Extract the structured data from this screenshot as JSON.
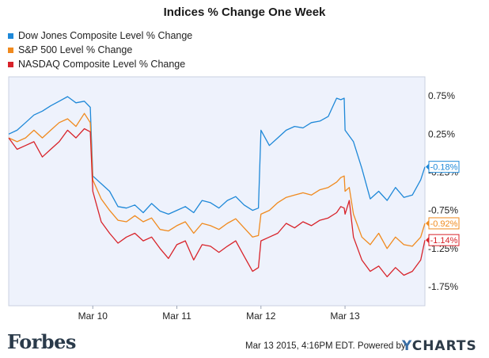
{
  "chart_data": {
    "type": "line",
    "title": "Indices % Change One Week",
    "xlabel": "",
    "ylabel": "",
    "categories": [
      "Mar 10",
      "Mar 11",
      "Mar 12",
      "Mar 13"
    ],
    "y_ticks": [
      "0.75%",
      "0.25%",
      "-0.25%",
      "-0.75%",
      "-1.25%",
      "-1.75%"
    ],
    "y_tick_values": [
      0.75,
      0.25,
      -0.25,
      -0.75,
      -1.25,
      -1.75
    ],
    "ylim": [
      -2.0,
      1.0
    ],
    "xlim": [
      0.0,
      4.95
    ],
    "grid": false,
    "legend_position": "top-left",
    "series": [
      {
        "name": "Dow Jones Composite Level % Change",
        "color": "#1e88d8",
        "end_label": "-0.18%",
        "points": [
          [
            0.0,
            0.25
          ],
          [
            0.1,
            0.3
          ],
          [
            0.2,
            0.4
          ],
          [
            0.3,
            0.5
          ],
          [
            0.4,
            0.55
          ],
          [
            0.5,
            0.62
          ],
          [
            0.6,
            0.68
          ],
          [
            0.7,
            0.74
          ],
          [
            0.8,
            0.66
          ],
          [
            0.9,
            0.68
          ],
          [
            0.97,
            0.6
          ],
          [
            1.0,
            -0.3
          ],
          [
            1.1,
            -0.4
          ],
          [
            1.2,
            -0.5
          ],
          [
            1.3,
            -0.7
          ],
          [
            1.4,
            -0.72
          ],
          [
            1.5,
            -0.68
          ],
          [
            1.6,
            -0.78
          ],
          [
            1.7,
            -0.66
          ],
          [
            1.8,
            -0.76
          ],
          [
            1.9,
            -0.8
          ],
          [
            2.0,
            -0.75
          ],
          [
            2.1,
            -0.7
          ],
          [
            2.2,
            -0.78
          ],
          [
            2.3,
            -0.62
          ],
          [
            2.4,
            -0.65
          ],
          [
            2.5,
            -0.72
          ],
          [
            2.6,
            -0.62
          ],
          [
            2.7,
            -0.57
          ],
          [
            2.8,
            -0.68
          ],
          [
            2.9,
            -0.75
          ],
          [
            2.97,
            -0.72
          ],
          [
            3.0,
            0.3
          ],
          [
            3.1,
            0.1
          ],
          [
            3.2,
            0.2
          ],
          [
            3.3,
            0.3
          ],
          [
            3.4,
            0.35
          ],
          [
            3.5,
            0.33
          ],
          [
            3.6,
            0.4
          ],
          [
            3.7,
            0.42
          ],
          [
            3.8,
            0.48
          ],
          [
            3.85,
            0.6
          ],
          [
            3.9,
            0.72
          ],
          [
            3.95,
            0.7
          ],
          [
            3.99,
            0.72
          ],
          [
            4.0,
            0.3
          ],
          [
            4.1,
            0.15
          ],
          [
            4.2,
            -0.2
          ],
          [
            4.3,
            -0.6
          ],
          [
            4.4,
            -0.5
          ],
          [
            4.5,
            -0.62
          ],
          [
            4.6,
            -0.45
          ],
          [
            4.7,
            -0.58
          ],
          [
            4.8,
            -0.55
          ],
          [
            4.9,
            -0.35
          ],
          [
            4.95,
            -0.18
          ]
        ]
      },
      {
        "name": "S&P 500 Level % Change",
        "color": "#f08a1e",
        "end_label": "-0.92%",
        "points": [
          [
            0.0,
            0.2
          ],
          [
            0.1,
            0.15
          ],
          [
            0.2,
            0.2
          ],
          [
            0.3,
            0.3
          ],
          [
            0.4,
            0.2
          ],
          [
            0.5,
            0.3
          ],
          [
            0.6,
            0.4
          ],
          [
            0.7,
            0.45
          ],
          [
            0.8,
            0.35
          ],
          [
            0.9,
            0.52
          ],
          [
            0.97,
            0.4
          ],
          [
            1.0,
            -0.35
          ],
          [
            1.1,
            -0.6
          ],
          [
            1.2,
            -0.75
          ],
          [
            1.3,
            -0.88
          ],
          [
            1.4,
            -0.9
          ],
          [
            1.5,
            -0.82
          ],
          [
            1.6,
            -0.9
          ],
          [
            1.7,
            -0.85
          ],
          [
            1.8,
            -1.0
          ],
          [
            1.9,
            -1.02
          ],
          [
            2.0,
            -0.95
          ],
          [
            2.1,
            -0.9
          ],
          [
            2.2,
            -1.05
          ],
          [
            2.3,
            -0.92
          ],
          [
            2.4,
            -0.95
          ],
          [
            2.5,
            -1.0
          ],
          [
            2.6,
            -0.92
          ],
          [
            2.7,
            -0.86
          ],
          [
            2.8,
            -0.98
          ],
          [
            2.9,
            -1.1
          ],
          [
            2.97,
            -1.08
          ],
          [
            3.0,
            -0.8
          ],
          [
            3.1,
            -0.75
          ],
          [
            3.2,
            -0.65
          ],
          [
            3.3,
            -0.58
          ],
          [
            3.4,
            -0.55
          ],
          [
            3.5,
            -0.52
          ],
          [
            3.6,
            -0.55
          ],
          [
            3.7,
            -0.48
          ],
          [
            3.8,
            -0.45
          ],
          [
            3.9,
            -0.38
          ],
          [
            3.95,
            -0.32
          ],
          [
            3.99,
            -0.3
          ],
          [
            4.0,
            -0.5
          ],
          [
            4.05,
            -0.45
          ],
          [
            4.1,
            -0.8
          ],
          [
            4.2,
            -1.1
          ],
          [
            4.3,
            -1.2
          ],
          [
            4.4,
            -1.05
          ],
          [
            4.5,
            -1.25
          ],
          [
            4.6,
            -1.1
          ],
          [
            4.7,
            -1.2
          ],
          [
            4.8,
            -1.22
          ],
          [
            4.9,
            -1.1
          ],
          [
            4.95,
            -0.92
          ]
        ]
      },
      {
        "name": "NASDAQ Composite Level % Change",
        "color": "#d8232a",
        "end_label": "-1.14%",
        "points": [
          [
            0.0,
            0.2
          ],
          [
            0.1,
            0.05
          ],
          [
            0.2,
            0.1
          ],
          [
            0.3,
            0.15
          ],
          [
            0.4,
            -0.05
          ],
          [
            0.5,
            0.05
          ],
          [
            0.6,
            0.15
          ],
          [
            0.7,
            0.3
          ],
          [
            0.8,
            0.2
          ],
          [
            0.9,
            0.32
          ],
          [
            0.97,
            0.28
          ],
          [
            1.0,
            -0.5
          ],
          [
            1.1,
            -0.9
          ],
          [
            1.2,
            -1.05
          ],
          [
            1.3,
            -1.18
          ],
          [
            1.4,
            -1.1
          ],
          [
            1.5,
            -1.05
          ],
          [
            1.6,
            -1.15
          ],
          [
            1.7,
            -1.1
          ],
          [
            1.8,
            -1.25
          ],
          [
            1.9,
            -1.38
          ],
          [
            2.0,
            -1.2
          ],
          [
            2.1,
            -1.15
          ],
          [
            2.2,
            -1.4
          ],
          [
            2.3,
            -1.2
          ],
          [
            2.4,
            -1.22
          ],
          [
            2.5,
            -1.3
          ],
          [
            2.6,
            -1.22
          ],
          [
            2.7,
            -1.15
          ],
          [
            2.8,
            -1.35
          ],
          [
            2.9,
            -1.55
          ],
          [
            2.97,
            -1.5
          ],
          [
            3.0,
            -1.15
          ],
          [
            3.1,
            -1.1
          ],
          [
            3.2,
            -1.05
          ],
          [
            3.3,
            -0.92
          ],
          [
            3.4,
            -0.98
          ],
          [
            3.5,
            -0.9
          ],
          [
            3.6,
            -0.95
          ],
          [
            3.7,
            -0.88
          ],
          [
            3.8,
            -0.85
          ],
          [
            3.9,
            -0.78
          ],
          [
            3.95,
            -0.7
          ],
          [
            3.99,
            -0.72
          ],
          [
            4.0,
            -0.8
          ],
          [
            4.05,
            -0.62
          ],
          [
            4.1,
            -1.1
          ],
          [
            4.2,
            -1.4
          ],
          [
            4.3,
            -1.55
          ],
          [
            4.4,
            -1.48
          ],
          [
            4.5,
            -1.62
          ],
          [
            4.6,
            -1.5
          ],
          [
            4.7,
            -1.6
          ],
          [
            4.8,
            -1.55
          ],
          [
            4.9,
            -1.4
          ],
          [
            4.95,
            -1.14
          ]
        ]
      }
    ]
  },
  "footer": {
    "timestamp": "Mar 13 2015, 4:16PM EDT.",
    "powered_by": "Powered by",
    "ycharts_y": "Y",
    "ycharts_rest": "CHARTS",
    "forbes": "Forbes"
  }
}
